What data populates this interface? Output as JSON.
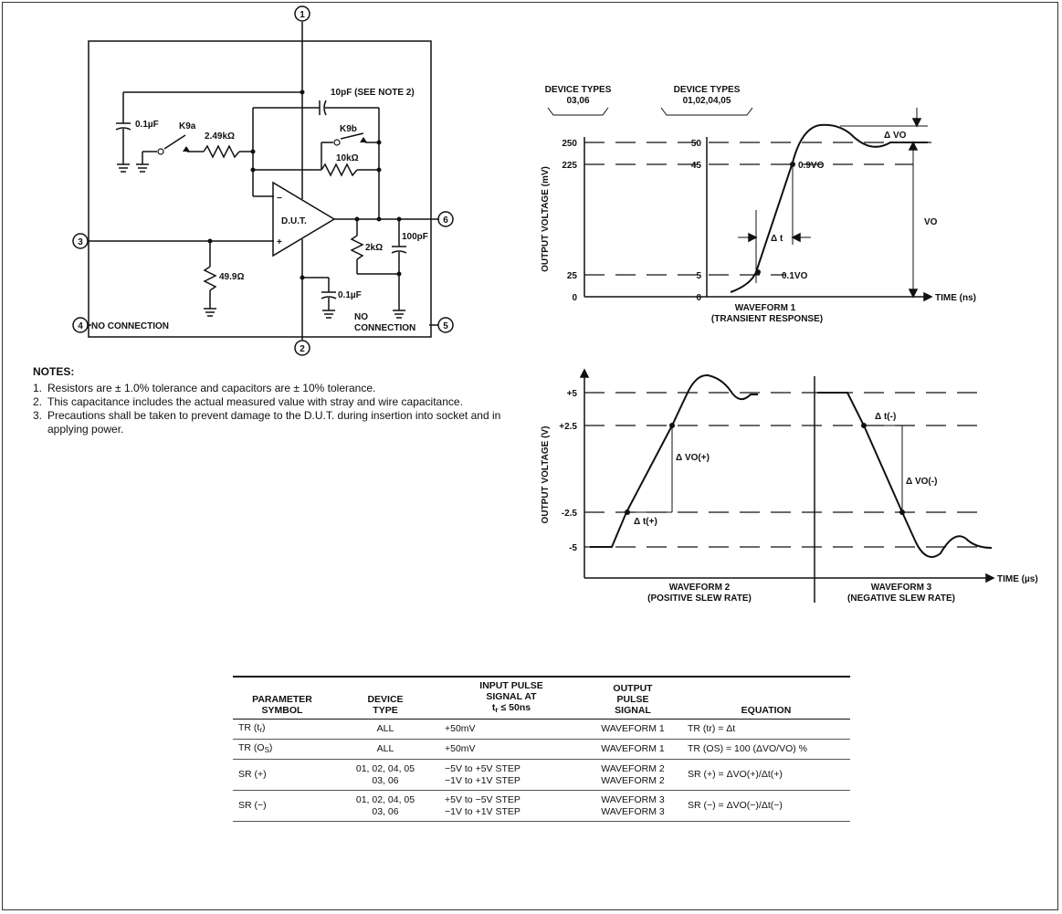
{
  "circuit": {
    "nodes": [
      "1",
      "2",
      "3",
      "4",
      "5",
      "6"
    ],
    "cap_feedback": "10pF (SEE NOTE 2)",
    "cap_input": "0.1µF",
    "switch_a": "K9a",
    "res_input": "2.49kΩ",
    "switch_b": "K9b",
    "res_feedback": "10kΩ",
    "opamp_label": "D.U.T.",
    "opamp_minus": "−",
    "opamp_plus": "+",
    "res_load": "2kΩ",
    "cap_load": "100pF",
    "res_term": "49.9Ω",
    "cap_supply": "0.1µF",
    "nc_left": "NO CONNECTION",
    "nc_right_1": "NO",
    "nc_right_2": "CONNECTION"
  },
  "waveform1": {
    "device_types_a_1": "DEVICE TYPES",
    "device_types_a_2": "03,06",
    "device_types_b_1": "DEVICE TYPES",
    "device_types_b_2": "01,02,04,05",
    "ylabel": "OUTPUT VOLTAGE (mV)",
    "ticks_a": [
      "250",
      "225",
      "25",
      "0"
    ],
    "ticks_b": [
      "50",
      "45",
      "5",
      "0"
    ],
    "point_hi": "0.9VO",
    "point_lo": "0.1VO",
    "delta_t": "Δ t",
    "delta_vo": "Δ VO",
    "vo": "VO",
    "time_axis": "TIME (ns)",
    "title": "WAVEFORM 1",
    "subtitle": "(TRANSIENT RESPONSE)"
  },
  "waveform23": {
    "ylabel": "OUTPUT VOLTAGE (V)",
    "ticks": [
      "+5",
      "+2.5",
      "-2.5",
      "-5"
    ],
    "dvo_pos": "Δ VO(+)",
    "dt_pos": "Δ t(+)",
    "dt_neg": "Δ t(-)",
    "dvo_neg": "Δ VO(-)",
    "time_axis": "TIME (µs)",
    "title2": "WAVEFORM 2",
    "subtitle2": "(POSITIVE SLEW RATE)",
    "title3": "WAVEFORM 3",
    "subtitle3": "(NEGATIVE SLEW RATE)"
  },
  "notes": {
    "title": "NOTES:",
    "items": [
      {
        "num": "1.",
        "text": "Resistors are ± 1.0% tolerance and capacitors are ± 10% tolerance."
      },
      {
        "num": "2.",
        "text": "This capacitance includes the actual measured value with stray and wire capacitance."
      },
      {
        "num": "3.",
        "text": "Precautions shall be taken to prevent damage to the D.U.T. during insertion into socket and in applying power."
      }
    ]
  },
  "table": {
    "headers": {
      "param_1": "PARAMETER",
      "param_2": "SYMBOL",
      "device_1": "DEVICE",
      "device_2": "TYPE",
      "input_1": "INPUT PULSE",
      "input_2": "SIGNAL AT",
      "input_3a": "t",
      "input_3b": "r",
      "input_3c": " ≤ 50ns",
      "output_1": "OUTPUT",
      "output_2": "PULSE",
      "output_3": "SIGNAL",
      "equation": "EQUATION"
    },
    "rows": [
      {
        "symbol": "TR (t",
        "symbol_sub": "r",
        "symbol_end": ")",
        "device_1": "ALL",
        "device_2": "",
        "input_1": "+50mV",
        "input_2": "",
        "output_1": "WAVEFORM 1",
        "output_2": "",
        "equation": "TR (tr) = Δt"
      },
      {
        "symbol": "TR (O",
        "symbol_sub": "S",
        "symbol_end": ")",
        "device_1": "ALL",
        "device_2": "",
        "input_1": "+50mV",
        "input_2": "",
        "output_1": "WAVEFORM 1",
        "output_2": "",
        "equation": "TR (OS) = 100 (ΔVO/VO) %"
      },
      {
        "symbol": "SR (+)",
        "symbol_sub": "",
        "symbol_end": "",
        "device_1": "01, 02, 04, 05",
        "device_2": "03, 06",
        "input_1": "−5V to +5V STEP",
        "input_2": "−1V to +1V STEP",
        "output_1": "WAVEFORM 2",
        "output_2": "WAVEFORM 2",
        "equation": "SR (+) = ΔVO(+)/Δt(+)"
      },
      {
        "symbol": "SR (−)",
        "symbol_sub": "",
        "symbol_end": "",
        "device_1": "01, 02, 04, 05",
        "device_2": "03, 06",
        "input_1": "+5V to −5V STEP",
        "input_2": "−1V to +1V STEP",
        "output_1": "WAVEFORM 3",
        "output_2": "WAVEFORM 3",
        "equation": "SR (−) = ΔVO(−)/Δt(−)"
      }
    ]
  }
}
